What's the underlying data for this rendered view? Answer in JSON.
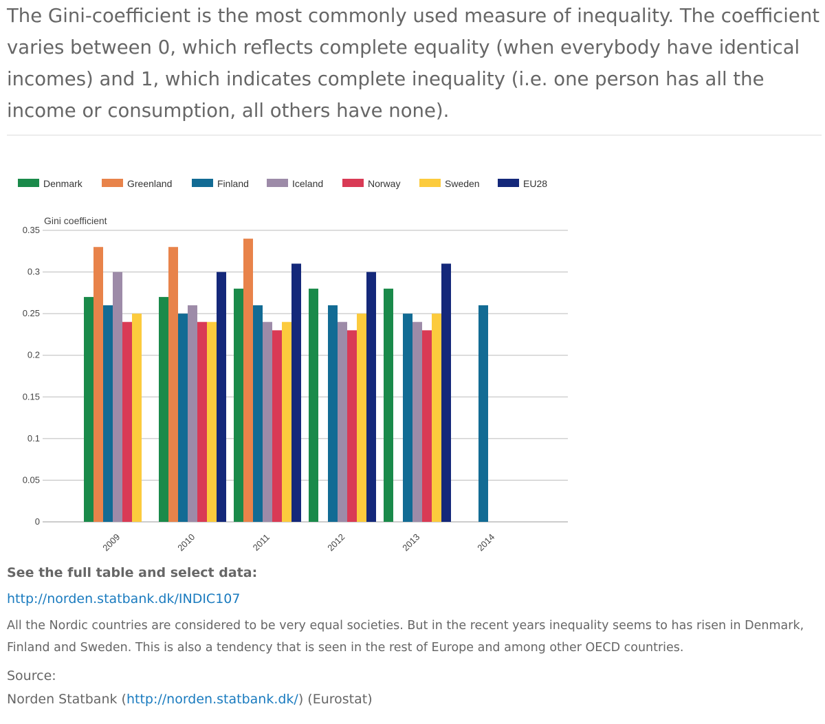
{
  "intro": {
    "text": "The Gini-coefficient is the most commonly used measure of inequality. The coefficient varies between 0, which reflects complete equality (when everybody have identical incomes) and 1, which indicates complete inequality (i.e. one person has all the income or consumption, all others have none)."
  },
  "chart_data": {
    "type": "bar",
    "title": "",
    "ylabel": "Gini coefficient",
    "xlabel": "",
    "ylim": [
      0,
      0.35
    ],
    "yticks": [
      {
        "value": 0.35,
        "label": "0.35"
      },
      {
        "value": 0.3,
        "label": "0.3"
      },
      {
        "value": 0.25,
        "label": "0.25"
      },
      {
        "value": 0.2,
        "label": "0.2"
      },
      {
        "value": 0.15,
        "label": "0.15"
      },
      {
        "value": 0.1,
        "label": "0.1"
      },
      {
        "value": 0.05,
        "label": "0.05"
      },
      {
        "value": 0,
        "label": "0"
      }
    ],
    "categories": [
      "2009",
      "2010",
      "2011",
      "2012",
      "2013",
      "2014"
    ],
    "legend_position": "top",
    "series": [
      {
        "name": "Denmark",
        "color": "#1a8a4a",
        "values": [
          0.27,
          0.27,
          0.28,
          0.28,
          0.28,
          null
        ]
      },
      {
        "name": "Greenland",
        "color": "#e8834a",
        "values": [
          0.33,
          0.33,
          0.34,
          null,
          null,
          null
        ]
      },
      {
        "name": "Finland",
        "color": "#126b94",
        "values": [
          0.26,
          0.25,
          0.26,
          0.26,
          0.25,
          0.26
        ]
      },
      {
        "name": "Iceland",
        "color": "#9d8ba8",
        "values": [
          0.3,
          0.26,
          0.24,
          0.24,
          0.24,
          null
        ]
      },
      {
        "name": "Norway",
        "color": "#d93a55",
        "values": [
          0.24,
          0.24,
          0.23,
          0.23,
          0.23,
          null
        ]
      },
      {
        "name": "Sweden",
        "color": "#fccb3d",
        "values": [
          0.25,
          0.24,
          0.24,
          0.25,
          0.25,
          null
        ]
      },
      {
        "name": "EU28",
        "color": "#14287a",
        "values": [
          null,
          0.3,
          0.31,
          0.3,
          0.31,
          null
        ]
      }
    ]
  },
  "cta": {
    "label": "See the full table and select data:",
    "table_url_text": "http://norden.statbank.dk/INDIC107"
  },
  "summary": {
    "text": "All the Nordic countries are considered to be very equal societies. But in the recent years inequality seems to has risen in Denmark, Finland and Sweden. This is also a tendency that is seen in the rest of Europe and among other OECD countries."
  },
  "source": {
    "label": "Source:",
    "prefix": "Norden Statbank (",
    "url_text": "http://norden.statbank.dk/",
    "suffix": ") (Eurostat)"
  }
}
